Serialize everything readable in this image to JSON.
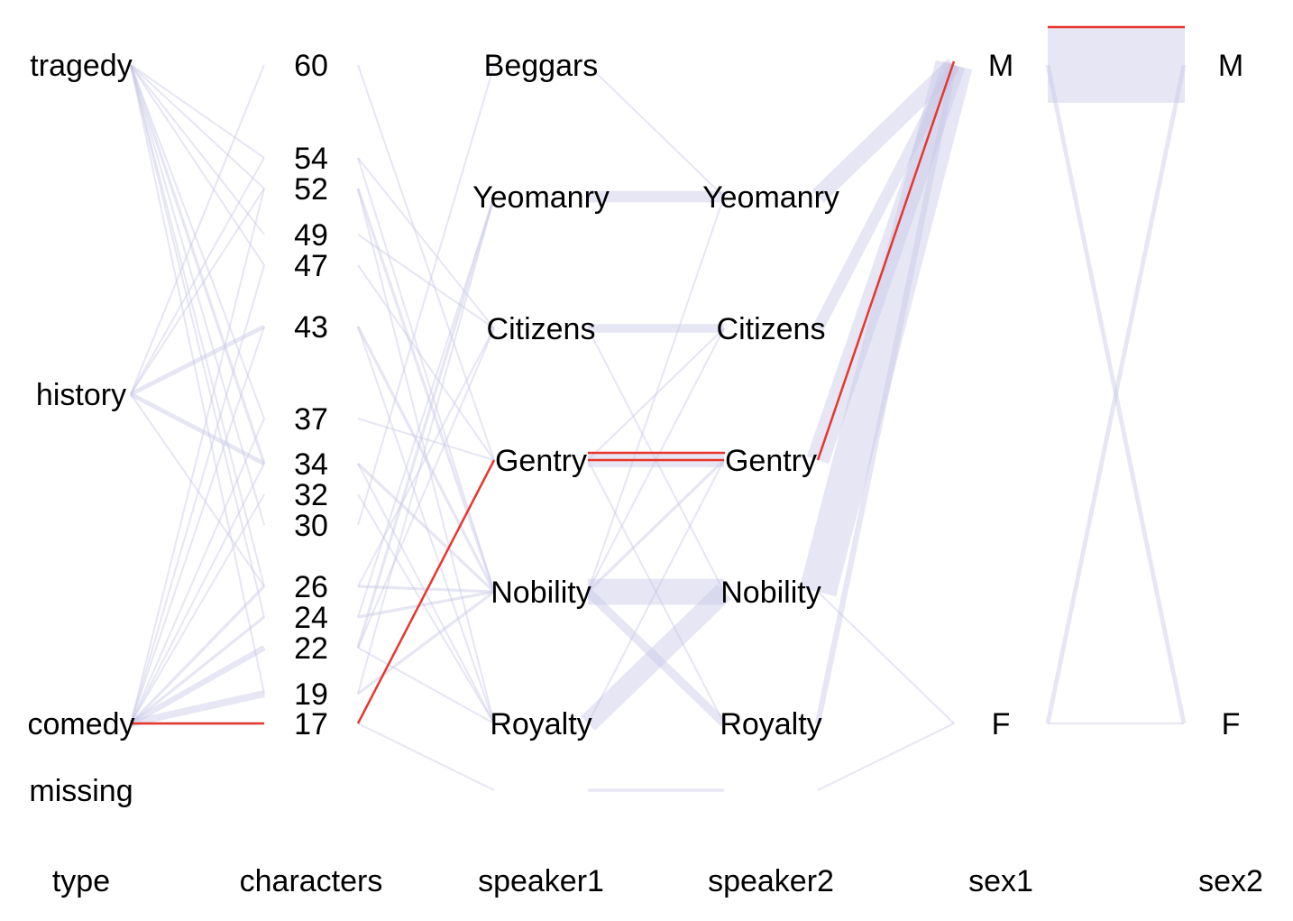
{
  "chart_data": {
    "type": "parallel_coordinates",
    "axes": [
      {
        "name": "type",
        "levels": [
          "tragedy",
          "history",
          "comedy",
          "missing"
        ]
      },
      {
        "name": "characters",
        "levels": [
          "60",
          "54",
          "52",
          "49",
          "47",
          "43",
          "37",
          "34",
          "32",
          "30",
          "26",
          "24",
          "22",
          "19",
          "17"
        ]
      },
      {
        "name": "speaker1",
        "levels": [
          "Beggars",
          "Yeomanry",
          "Citizens",
          "Gentry",
          "Nobility",
          "Royalty"
        ]
      },
      {
        "name": "speaker2",
        "levels": [
          "Yeomanry",
          "Citizens",
          "Gentry",
          "Nobility",
          "Royalty"
        ]
      },
      {
        "name": "sex1",
        "levels": [
          "M",
          "F"
        ]
      },
      {
        "name": "sex2",
        "levels": [
          "M",
          "F"
        ]
      }
    ],
    "highlighted_record": {
      "type": "comedy",
      "characters": "17",
      "speaker1": "Gentry",
      "speaker2": "Gentry",
      "sex1": "M",
      "sex2": "M"
    },
    "colors": {
      "background_lines": "#c8c8e6",
      "highlight": "#e8362c"
    }
  }
}
